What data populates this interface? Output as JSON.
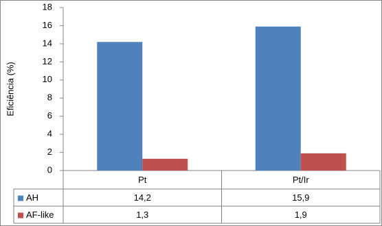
{
  "chart_data": {
    "type": "bar",
    "y_label": "Eficiência (%)",
    "categories": [
      "Pt",
      "Pt/Ir"
    ],
    "series": [
      {
        "name": "AH",
        "color": "#4f81bd",
        "values": [
          14.2,
          15.9
        ],
        "value_labels": [
          "14,2",
          "15,9"
        ]
      },
      {
        "name": "AF-like",
        "color": "#c0504d",
        "values": [
          1.3,
          1.9
        ],
        "value_labels": [
          "1,3",
          "1,9"
        ]
      }
    ],
    "ylim": [
      0,
      18
    ],
    "yticks": [
      0,
      2,
      4,
      6,
      8,
      10,
      12,
      14,
      16,
      18
    ]
  }
}
